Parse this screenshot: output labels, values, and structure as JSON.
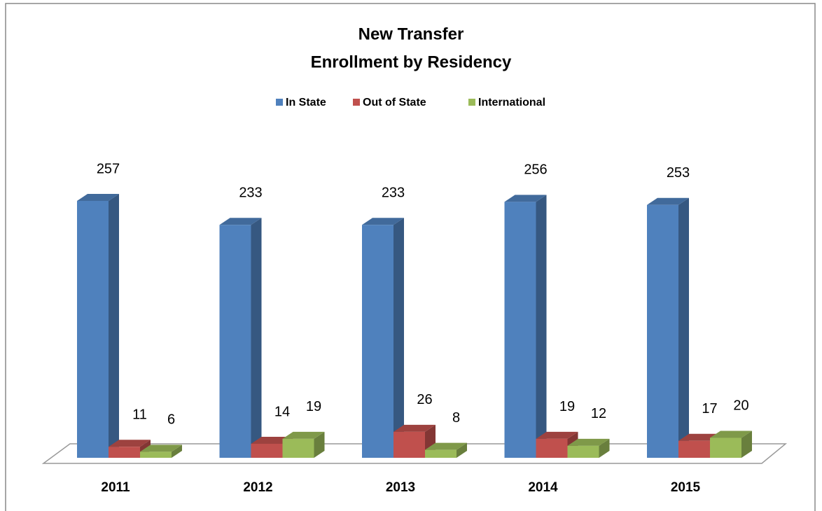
{
  "chart_data": {
    "type": "bar3d",
    "title": [
      "New Transfer",
      "Enrollment by Residency"
    ],
    "categories": [
      "2011",
      "2012",
      "2013",
      "2014",
      "2015"
    ],
    "series": [
      {
        "name": "In State",
        "color": "#4f81bd",
        "values": [
          257,
          233,
          233,
          256,
          253
        ]
      },
      {
        "name": "Out of State",
        "color": "#c0504d",
        "values": [
          11,
          14,
          26,
          19,
          17
        ]
      },
      {
        "name": "International",
        "color": "#9bbb59",
        "values": [
          6,
          19,
          8,
          12,
          20
        ]
      }
    ],
    "legend": "top"
  }
}
